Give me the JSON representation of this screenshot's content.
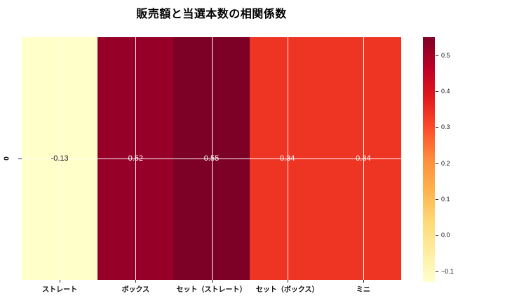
{
  "chart_data": {
    "type": "heatmap",
    "title": "販売額と当選本数の相関係数",
    "row_labels": [
      "0"
    ],
    "categories": [
      "ストレート",
      "ボックス",
      "セット（ストレート）",
      "セット（ボックス）",
      "ミニ"
    ],
    "values": [
      [
        -0.13,
        0.52,
        0.55,
        0.34,
        0.34
      ]
    ],
    "annotations": [
      "-0.13",
      "0.52",
      "0.55",
      "0.34",
      "0.34"
    ],
    "cell_colors": [
      "#ffffca",
      "#960028",
      "#7d0026",
      "#ee3423",
      "#ee3423"
    ],
    "annotation_text_colors": [
      "#1a1a1a",
      "#ffffff",
      "#ffffff",
      "#ffffff",
      "#ffffff"
    ],
    "colormap": "YlOrRd",
    "vmin": -0.13,
    "vmax": 0.55,
    "grid": true,
    "grid_color": "#ffffff",
    "colorbar": {
      "position": "right",
      "ticks": [
        0.5,
        0.4,
        0.3,
        0.2,
        0.1,
        0.0,
        -0.1
      ],
      "tick_labels": [
        "0.5",
        "0.4",
        "0.3",
        "0.2",
        "0.1",
        "0.0",
        "−0.1"
      ]
    }
  }
}
